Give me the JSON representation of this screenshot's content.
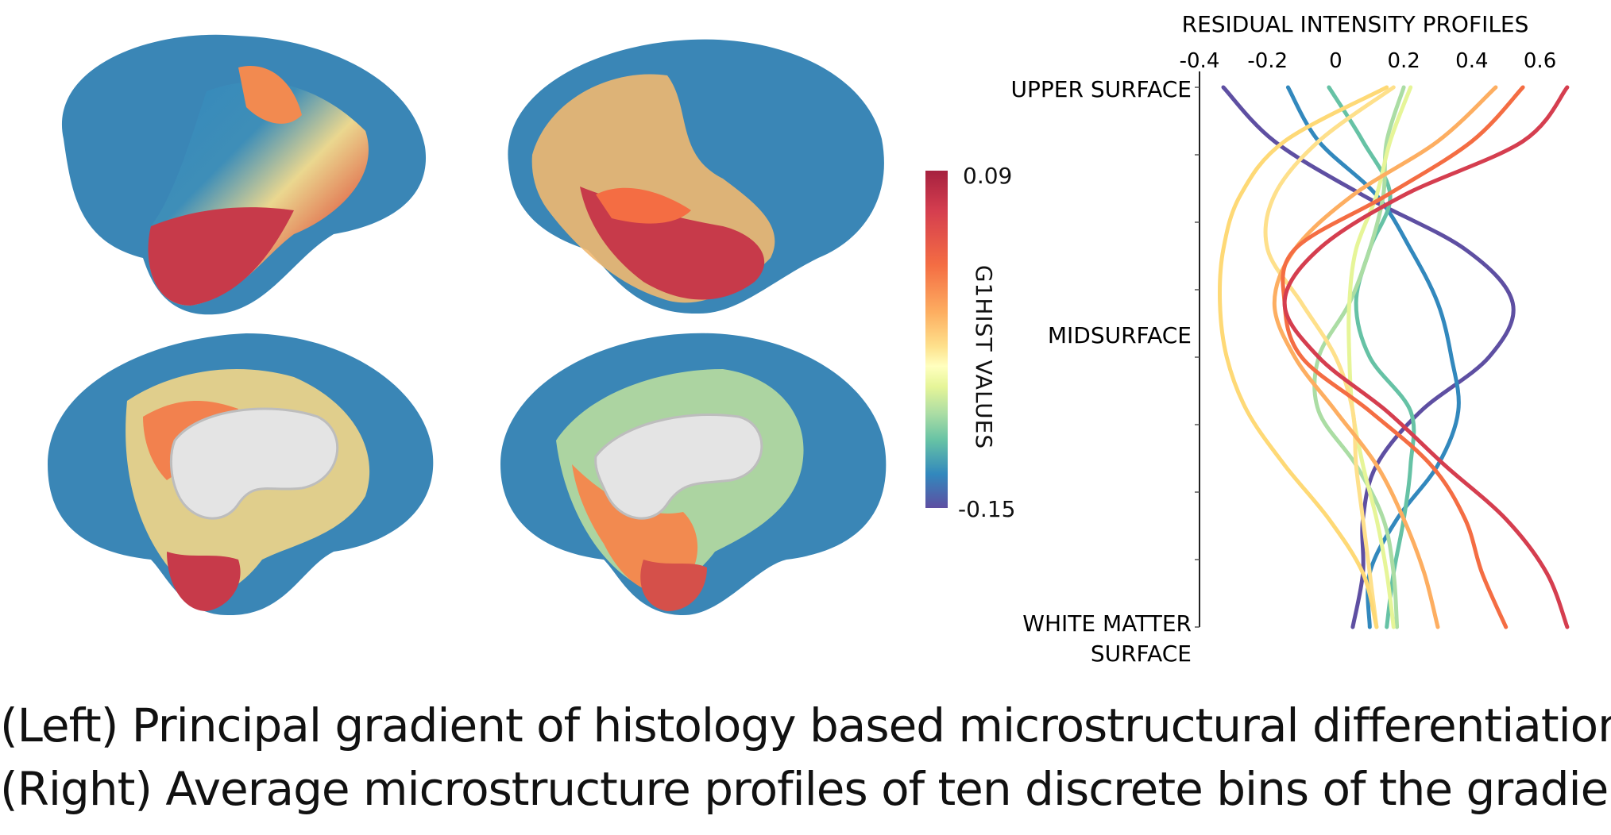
{
  "colorbar": {
    "max_label": "0.09",
    "min_label": "-0.15",
    "title": "G1HIST VALUES",
    "colors": [
      "#a6213f",
      "#d53e4f",
      "#f46d43",
      "#fdae61",
      "#fee08b",
      "#ffffbf",
      "#e6f598",
      "#abdda4",
      "#66c2a5",
      "#3288bd",
      "#5e4fa2"
    ]
  },
  "chart_data": {
    "type": "line",
    "title": "RESIDUAL INTENSITY PROFILES",
    "xlim": [
      -0.4,
      0.65
    ],
    "x_ticks": [
      "-0.4",
      "-0.2",
      "0",
      "0.2",
      "0.4",
      "0.6"
    ],
    "x_tick_values": [
      -0.4,
      -0.2,
      0,
      0.2,
      0.4,
      0.6
    ],
    "y_labels": [
      "UPPER SURFACE",
      "MIDSURFACE",
      "WHITE MATTER",
      "SURFACE"
    ],
    "depth": [
      0,
      0.1,
      0.2,
      0.3,
      0.4,
      0.5,
      0.6,
      0.7,
      0.8,
      0.9,
      1.0
    ],
    "series": [
      {
        "color": "#5e4fa2",
        "values": [
          -0.33,
          -0.18,
          0.08,
          0.38,
          0.52,
          0.45,
          0.25,
          0.12,
          0.08,
          0.08,
          0.05
        ]
      },
      {
        "color": "#3288bd",
        "values": [
          -0.14,
          -0.05,
          0.12,
          0.22,
          0.3,
          0.34,
          0.36,
          0.3,
          0.18,
          0.1,
          0.1
        ]
      },
      {
        "color": "#66c2a5",
        "values": [
          -0.02,
          0.08,
          0.16,
          0.1,
          0.06,
          0.1,
          0.22,
          0.22,
          0.2,
          0.17,
          0.15
        ]
      },
      {
        "color": "#abdda4",
        "values": [
          0.2,
          0.15,
          0.14,
          0.1,
          0.04,
          -0.05,
          -0.05,
          0.06,
          0.14,
          0.17,
          0.18
        ]
      },
      {
        "color": "#e6f598",
        "values": [
          0.22,
          0.16,
          0.12,
          0.06,
          0.04,
          0.04,
          0.05,
          0.08,
          0.12,
          0.15,
          0.17
        ]
      },
      {
        "color": "#fee08b",
        "values": [
          0.17,
          -0.05,
          -0.18,
          -0.2,
          -0.1,
          0.0,
          0.05,
          0.06,
          0.08,
          0.1,
          0.12
        ]
      },
      {
        "color": "#fed976",
        "values": [
          0.15,
          -0.15,
          -0.28,
          -0.33,
          -0.34,
          -0.32,
          -0.26,
          -0.15,
          -0.02,
          0.08,
          0.12
        ]
      },
      {
        "color": "#fdae61",
        "values": [
          0.47,
          0.3,
          0.05,
          -0.12,
          -0.18,
          -0.12,
          0.0,
          0.12,
          0.2,
          0.26,
          0.3
        ]
      },
      {
        "color": "#f46d43",
        "values": [
          0.55,
          0.4,
          0.15,
          -0.12,
          -0.15,
          -0.1,
          0.1,
          0.28,
          0.38,
          0.43,
          0.5
        ]
      },
      {
        "color": "#d53e4f",
        "values": [
          0.68,
          0.55,
          0.2,
          -0.05,
          -0.15,
          -0.05,
          0.15,
          0.32,
          0.5,
          0.62,
          0.68
        ]
      }
    ]
  },
  "caption": {
    "line1": "(Left) Principal gradient of histology based microstructural differentiation",
    "line2": "(Right) Average microstructure profiles of ten discrete bins of the gradient"
  }
}
